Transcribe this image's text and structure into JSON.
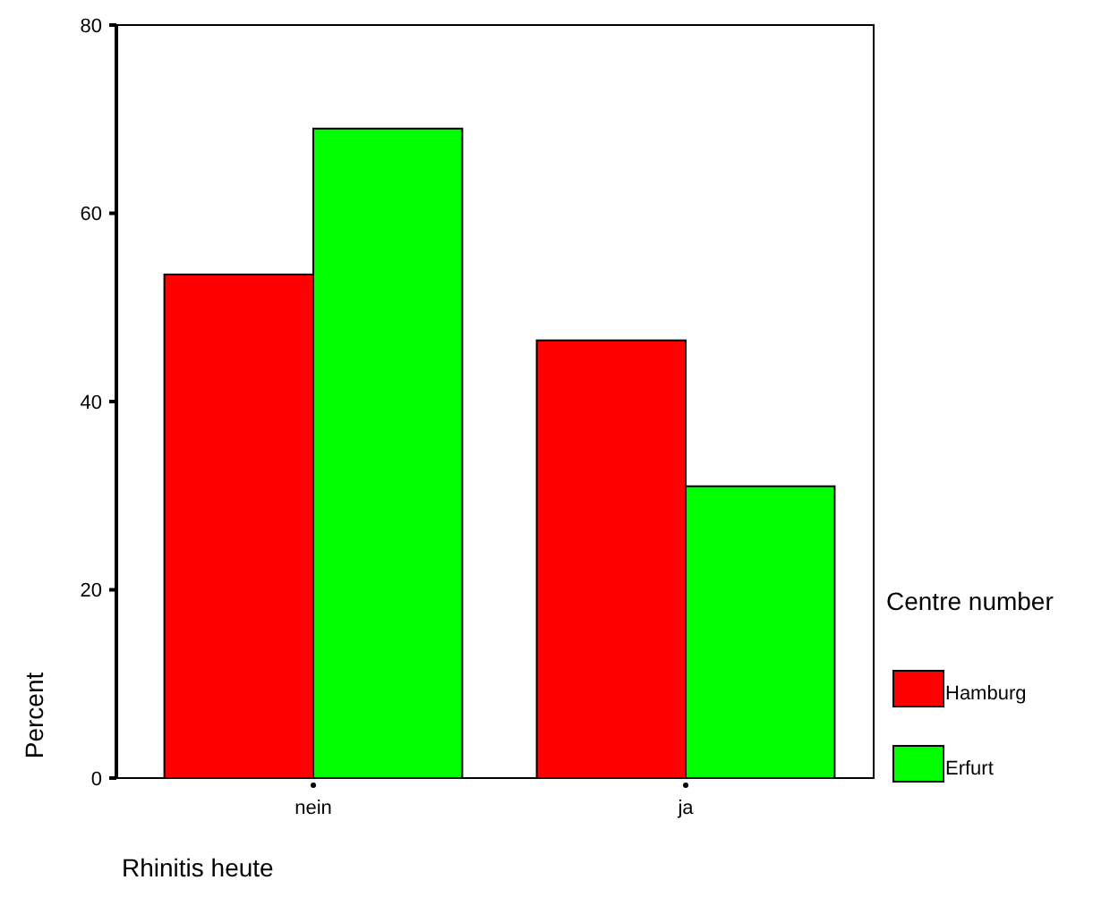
{
  "chart_data": {
    "type": "bar",
    "xlabel": "Rhinitis heute",
    "ylabel": "Percent",
    "legend_title": "Centre number",
    "legend": "right",
    "categories": [
      "nein",
      "ja"
    ],
    "series": [
      {
        "name": "Hamburg",
        "color": "#ff0000",
        "values": [
          53.5,
          46.5
        ]
      },
      {
        "name": "Erfurt",
        "color": "#00ff00",
        "values": [
          69,
          31
        ]
      }
    ],
    "ylim": [
      0,
      80
    ],
    "yticks": [
      0,
      20,
      40,
      60,
      80
    ]
  }
}
